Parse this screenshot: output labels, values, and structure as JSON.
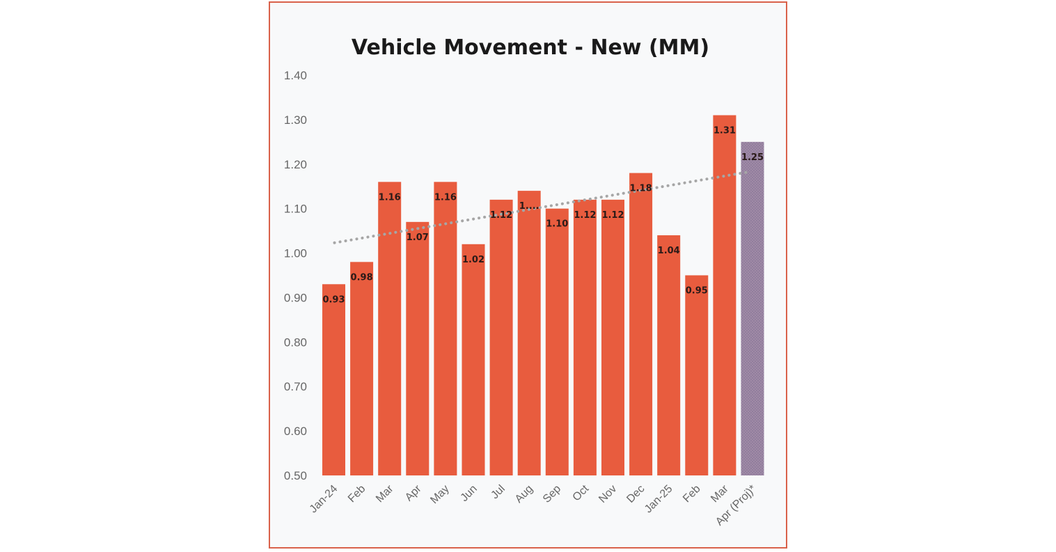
{
  "chart_data": {
    "type": "bar",
    "title": "Vehicle Movement - New (MM)",
    "categories": [
      "Jan-24",
      "Feb",
      "Mar",
      "Apr",
      "May",
      "Jun",
      "Jul",
      "Aug",
      "Sep",
      "Oct",
      "Nov",
      "Dec",
      "Jan-25",
      "Feb",
      "Mar",
      "Apr (Proj)*"
    ],
    "values": [
      0.93,
      0.98,
      1.16,
      1.07,
      1.16,
      1.02,
      1.12,
      1.14,
      1.1,
      1.12,
      1.12,
      1.18,
      1.04,
      0.95,
      1.31,
      1.25
    ],
    "data_labels": [
      "0.93",
      "0.98",
      "1.16",
      "1.07",
      "1.16",
      "1.02",
      "1.12",
      "1....",
      "1.10",
      "1.12",
      "1.12",
      "1.18",
      "1.04",
      "0.95",
      "1.31",
      "1.25"
    ],
    "ylim": [
      0.5,
      1.4
    ],
    "yticks": [
      "0.50",
      "0.60",
      "0.70",
      "0.80",
      "0.90",
      "1.00",
      "1.10",
      "1.20",
      "1.30",
      "1.40"
    ],
    "trendline": {
      "style": "dotted",
      "start": 1.02,
      "end": 1.18
    },
    "grid": false,
    "legend": "none",
    "colors": {
      "bar": "#e85c3e",
      "projected_bar": "#8e7d9e",
      "trendline": "#a6a6a6",
      "border": "#d9614a",
      "background": "#f8f9fa"
    }
  }
}
